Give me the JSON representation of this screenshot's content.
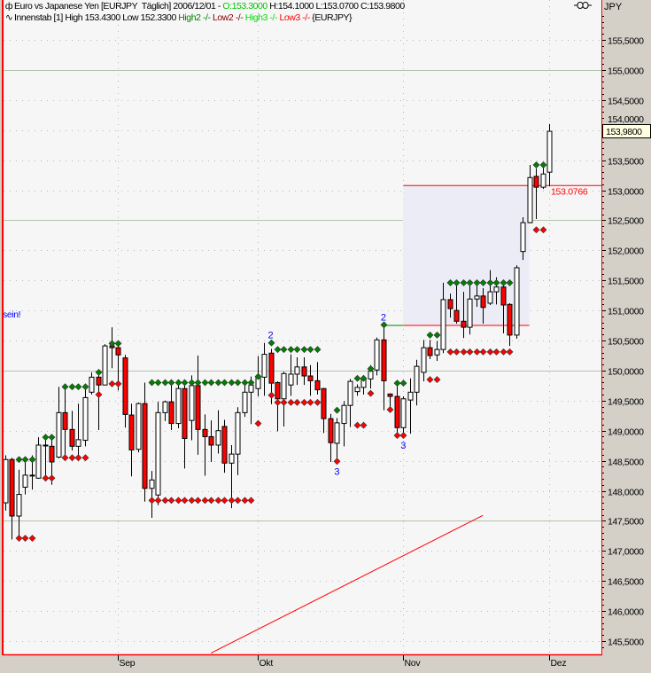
{
  "header": {
    "line1_prefix": "Euro vs Japanese Yen [EURJPY  Täglich] 2006/12/01 - ",
    "line1_open": "O:153.3000",
    "line1_rest": " H:154.1000 L:153.0700 C:153.9800",
    "line2_prefix": "Innenstab [1] High 153.4300 Low 152.3300 ",
    "line2_high2": "High2 -/-",
    "line2_low2": " Low2 -/-",
    "line2_high3": " High3 -/-",
    "line2_low3": " Low3 -/-",
    "line2_symbol": " {EURJPY}",
    "icon1": "candlestick-icon",
    "icon2": "indicator-wave-icon"
  },
  "axis": {
    "currency": "JPY",
    "link_icon": "link-icon",
    "current_price_label": "153,9800"
  },
  "colors": {
    "plot_bg": "#f6f6f6",
    "panel_bg": "#d4d0c8",
    "border": "#ff0000",
    "up_candle": "#ffffff",
    "down_candle": "#ff0000",
    "high_marker": "#008000",
    "low_marker": "#ff0000",
    "annotation": "#0000ff",
    "box_fill": "#ececf6"
  },
  "chart_data": {
    "type": "candlestick",
    "title": "Euro vs Japanese Yen [EURJPY  Täglich]",
    "ylabel": "JPY",
    "ylim": [
      145.28,
      155.9
    ],
    "grid": true,
    "yticks": [
      "145,5000",
      "146,0000",
      "146,5000",
      "147,0000",
      "147,5000",
      "148,0000",
      "148,5000",
      "149,0000",
      "149,5000",
      "150,0000",
      "150,5000",
      "151,0000",
      "151,5000",
      "152,0000",
      "152,5000",
      "153,0000",
      "153,5000",
      "154,0000",
      "154,5000",
      "155,0000",
      "155,5000"
    ],
    "ytick_values": [
      145.5,
      146,
      146.5,
      147,
      147.5,
      148,
      148.5,
      149,
      149.5,
      150,
      150.5,
      151,
      151.5,
      152,
      152.5,
      153,
      153.5,
      154,
      154.5,
      155,
      155.5
    ],
    "xticks": [
      {
        "label": "Sep",
        "date": "2006-09-01"
      },
      {
        "label": "Okt",
        "date": "2006-10-02"
      },
      {
        "label": "Nov",
        "date": "2006-11-01"
      },
      {
        "label": "Dez",
        "date": "2006-12-01"
      }
    ],
    "candle_fields": [
      "date",
      "open",
      "high",
      "low",
      "close"
    ],
    "candles": [
      [
        "2006-08-09",
        147.8,
        148.59,
        147.67,
        148.52
      ],
      [
        "2006-08-10",
        148.52,
        148.55,
        147.19,
        147.58
      ],
      [
        "2006-08-11",
        147.58,
        148.35,
        147.19,
        147.94
      ],
      [
        "2006-08-14",
        148.06,
        148.57,
        147.94,
        148.26
      ],
      [
        "2006-08-15",
        148.25,
        148.59,
        148.02,
        148.26
      ],
      [
        "2006-08-16",
        148.21,
        148.89,
        148.2,
        148.76
      ],
      [
        "2006-08-17",
        148.76,
        148.89,
        148.17,
        148.75
      ],
      [
        "2006-08-18",
        148.74,
        148.89,
        148.1,
        148.48
      ],
      [
        "2006-08-21",
        148.56,
        149.73,
        148.54,
        149.3
      ],
      [
        "2006-08-22",
        149.3,
        149.72,
        148.56,
        149.02
      ],
      [
        "2006-08-23",
        149.02,
        149.33,
        148.67,
        148.74
      ],
      [
        "2006-08-24",
        148.74,
        149.45,
        148.5,
        148.85
      ],
      [
        "2006-08-25",
        148.84,
        149.72,
        148.74,
        149.55
      ],
      [
        "2006-08-28",
        149.64,
        149.97,
        149.6,
        149.89
      ],
      [
        "2006-08-29",
        149.89,
        149.97,
        149.01,
        149.76
      ],
      [
        "2006-08-30",
        149.76,
        150.44,
        149.76,
        150.41
      ],
      [
        "2006-08-31",
        150.41,
        150.72,
        150.04,
        150.38
      ],
      [
        "2006-09-01",
        150.38,
        150.46,
        149.67,
        150.26
      ],
      [
        "2006-09-04",
        150.21,
        150.26,
        149.05,
        149.27
      ],
      [
        "2006-09-05",
        149.26,
        149.45,
        148.24,
        148.68
      ],
      [
        "2006-09-06",
        148.69,
        149.47,
        148.64,
        149.45
      ],
      [
        "2006-09-07",
        149.45,
        149.8,
        147.82,
        148.04
      ],
      [
        "2006-09-08",
        148.04,
        148.33,
        147.55,
        148.18
      ],
      [
        "2006-09-11",
        147.93,
        149.48,
        147.76,
        149.3
      ],
      [
        "2006-09-12",
        149.3,
        149.5,
        149.16,
        149.48
      ],
      [
        "2006-09-13",
        149.48,
        149.8,
        149.01,
        149.12
      ],
      [
        "2006-09-14",
        149.12,
        149.75,
        149.04,
        149.7
      ],
      [
        "2006-09-15",
        149.7,
        149.75,
        148.37,
        148.87
      ],
      [
        "2006-09-18",
        149.17,
        149.92,
        148.84,
        149.75
      ],
      [
        "2006-09-19",
        149.75,
        150.25,
        148.6,
        149.02
      ],
      [
        "2006-09-20",
        149.02,
        149.27,
        148.25,
        148.9
      ],
      [
        "2006-09-21",
        148.9,
        149.17,
        148.48,
        148.76
      ],
      [
        "2006-09-22",
        148.76,
        149.34,
        148.62,
        149.0
      ],
      [
        "2006-09-25",
        149.07,
        149.18,
        148.3,
        148.46
      ],
      [
        "2006-09-26",
        148.46,
        148.76,
        147.71,
        148.61
      ],
      [
        "2006-09-27",
        148.61,
        149.39,
        148.26,
        149.3
      ],
      [
        "2006-09-28",
        149.3,
        149.77,
        149.23,
        149.64
      ],
      [
        "2006-09-29",
        149.64,
        149.9,
        149.11,
        149.76
      ],
      [
        "2006-10-02",
        149.7,
        150.24,
        149.57,
        149.9
      ],
      [
        "2006-10-03",
        149.89,
        150.46,
        149.58,
        150.27
      ],
      [
        "2006-10-04",
        150.29,
        150.36,
        149.44,
        149.79
      ],
      [
        "2006-10-05",
        149.8,
        149.82,
        148.99,
        149.53
      ],
      [
        "2006-10-06",
        149.53,
        149.98,
        149.07,
        149.95
      ],
      [
        "2006-10-09",
        149.76,
        150.27,
        149.58,
        149.94
      ],
      [
        "2006-10-10",
        149.94,
        150.22,
        149.76,
        150.06
      ],
      [
        "2006-10-11",
        150.06,
        150.22,
        149.76,
        149.91
      ],
      [
        "2006-10-12",
        149.91,
        150.09,
        149.58,
        149.83
      ],
      [
        "2006-10-13",
        149.83,
        150.14,
        149.6,
        149.68
      ],
      [
        "2006-10-16",
        149.7,
        149.71,
        148.96,
        149.2
      ],
      [
        "2006-10-17",
        149.2,
        149.28,
        148.48,
        148.8
      ],
      [
        "2006-10-18",
        148.79,
        149.21,
        148.5,
        149.13
      ],
      [
        "2006-10-19",
        149.12,
        149.49,
        148.74,
        149.42
      ],
      [
        "2006-10-20",
        149.42,
        149.86,
        149.06,
        149.82
      ],
      [
        "2006-10-23",
        149.65,
        149.77,
        149.58,
        149.72
      ],
      [
        "2006-10-24",
        149.72,
        149.92,
        149.6,
        149.85
      ],
      [
        "2006-10-25",
        149.86,
        150.09,
        149.7,
        149.99
      ],
      [
        "2006-10-26",
        150.01,
        150.55,
        149.92,
        150.51
      ],
      [
        "2006-10-27",
        150.51,
        150.76,
        149.34,
        149.83
      ],
      [
        "2006-10-30",
        149.61,
        149.62,
        149.33,
        149.57
      ],
      [
        "2006-10-31",
        149.57,
        149.78,
        148.91,
        149.05
      ],
      [
        "2006-11-01",
        149.05,
        149.57,
        148.94,
        149.53
      ],
      [
        "2006-11-02",
        149.51,
        149.87,
        148.95,
        149.64
      ],
      [
        "2006-11-03",
        149.64,
        150.18,
        149.42,
        150.07
      ],
      [
        "2006-11-06",
        149.97,
        150.51,
        149.82,
        150.38
      ],
      [
        "2006-11-07",
        150.38,
        150.51,
        150.19,
        150.25
      ],
      [
        "2006-11-08",
        150.26,
        150.49,
        150.16,
        150.35
      ],
      [
        "2006-11-09",
        150.35,
        151.46,
        150.29,
        151.18
      ],
      [
        "2006-11-10",
        151.18,
        151.28,
        150.88,
        151.03
      ],
      [
        "2006-11-13",
        151.0,
        151.43,
        150.78,
        150.82
      ],
      [
        "2006-11-14",
        150.82,
        151.31,
        150.54,
        150.72
      ],
      [
        "2006-11-15",
        150.72,
        151.43,
        150.6,
        151.19
      ],
      [
        "2006-11-16",
        151.19,
        151.44,
        151.06,
        151.24
      ],
      [
        "2006-11-17",
        151.24,
        151.37,
        150.78,
        151.05
      ],
      [
        "2006-11-20",
        151.12,
        151.67,
        151.09,
        151.31
      ],
      [
        "2006-11-21",
        151.31,
        151.55,
        151.1,
        151.39
      ],
      [
        "2006-11-22",
        151.39,
        151.49,
        150.62,
        151.09
      ],
      [
        "2006-11-23",
        151.1,
        151.12,
        150.41,
        150.59
      ],
      [
        "2006-11-24",
        150.59,
        151.75,
        150.53,
        151.71
      ],
      [
        "2006-11-27",
        151.98,
        152.55,
        151.84,
        152.46
      ],
      [
        "2006-11-28",
        152.46,
        153.42,
        152.45,
        153.21
      ],
      [
        "2006-11-29",
        153.23,
        153.36,
        152.52,
        153.05
      ],
      [
        "2006-11-30",
        153.05,
        153.39,
        153.02,
        153.27
      ],
      [
        "2006-12-01",
        153.3,
        154.1,
        153.07,
        153.98
      ]
    ],
    "marker_groups": [
      {
        "from": "2006-08-11",
        "to": "2006-08-15",
        "high": 148.52,
        "low": 147.21
      },
      {
        "from": "2006-08-17",
        "to": "2006-08-18",
        "high": 148.89,
        "low": 148.21
      },
      {
        "from": "2006-08-22",
        "to": "2006-08-25",
        "high": 149.73,
        "low": 148.55
      },
      {
        "from": "2006-08-29",
        "to": "2006-08-29",
        "high": 149.97,
        "low": 149.6
      },
      {
        "from": "2006-08-31",
        "to": "2006-09-01",
        "high": 150.45,
        "low": 149.78
      },
      {
        "from": "2006-09-08",
        "to": "2006-09-29",
        "high": 149.8,
        "low": 147.84
      },
      {
        "from": "2006-10-02",
        "to": "2006-10-02",
        "high": 149.9,
        "low": 149.12
      },
      {
        "from": "2006-10-04",
        "to": "2006-10-04",
        "high": 150.46,
        "low": 149.59
      },
      {
        "from": "2006-10-05",
        "to": "2006-10-13",
        "high": 150.35,
        "low": 149.47
      },
      {
        "from": "2006-10-18",
        "to": "2006-10-18",
        "high": 149.34,
        "low": 148.49
      },
      {
        "from": "2006-10-23",
        "to": "2006-10-24",
        "high": 149.87,
        "low": 149.09
      },
      {
        "from": "2006-10-25",
        "to": "2006-10-25",
        "high": 150.03,
        "low": 149.62
      },
      {
        "from": "2006-10-27",
        "to": "2006-10-27",
        "high": 150.76
      },
      {
        "from": "2006-10-30",
        "to": "2006-10-30",
        "low": 149.35
      },
      {
        "from": "2006-10-31",
        "to": "2006-11-01",
        "high": 149.79,
        "low": 148.92
      },
      {
        "from": "2006-11-07",
        "to": "2006-11-08",
        "high": 150.59,
        "low": 149.85
      },
      {
        "from": "2006-11-10",
        "to": "2006-11-23",
        "high": 151.46,
        "low": 150.31
      },
      {
        "from": "2006-11-29",
        "to": "2006-11-30",
        "high": 153.42,
        "low": 152.34
      }
    ],
    "wave_labels": [
      {
        "text": "2",
        "date": "2006-10-04",
        "price": 150.46,
        "position": "above"
      },
      {
        "text": "3",
        "date": "2006-10-18",
        "price": 148.49,
        "position": "below"
      },
      {
        "text": "2",
        "date": "2006-10-27",
        "price": 150.76,
        "position": "above"
      },
      {
        "text": "3",
        "date": "2006-11-01",
        "price": 148.92,
        "position": "below"
      }
    ],
    "target_box": {
      "from": "2006-11-01",
      "to": "2006-11-28",
      "low": 150.75,
      "high": 153.0766
    },
    "target_label": "153.0766",
    "base_line": {
      "from": "2006-10-27",
      "to": "2006-11-01",
      "price": 150.75
    },
    "trendline": {
      "from": [
        "2006-09-21",
        145.3
      ],
      "to": [
        "2006-11-17",
        147.59
      ]
    },
    "annotation_text": "sein!"
  }
}
